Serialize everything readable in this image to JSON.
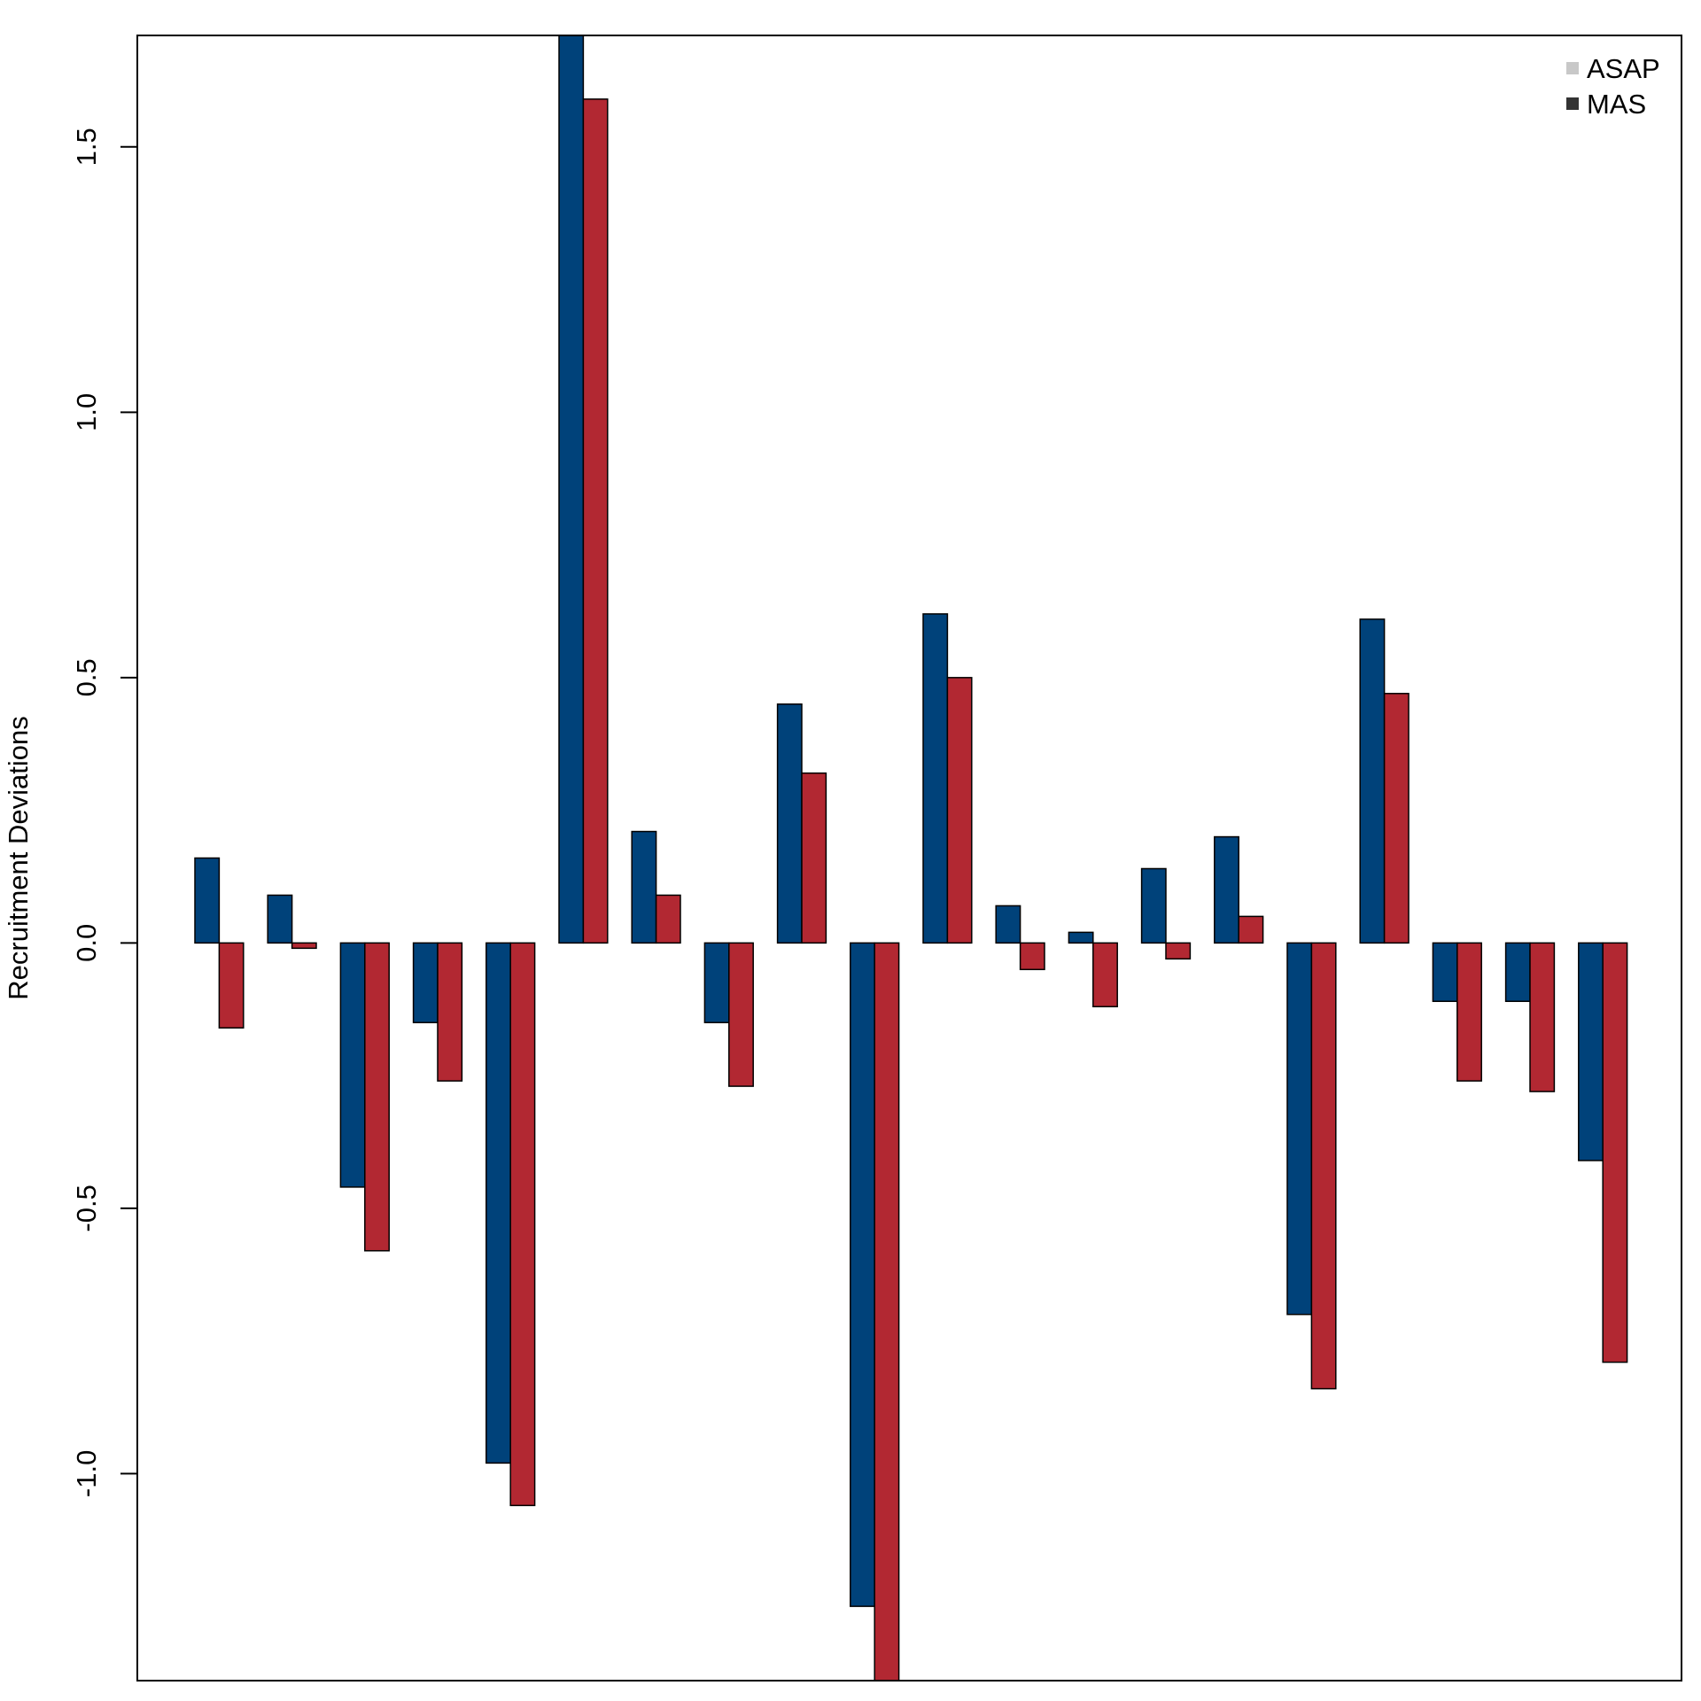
{
  "chart_data": {
    "type": "bar",
    "title": "",
    "xlabel": "",
    "ylabel": "Recruitment Deviations",
    "ylim": [
      -1.39,
      1.71
    ],
    "yticks": [
      -1.0,
      -0.5,
      0.0,
      0.5,
      1.0,
      1.5
    ],
    "ytick_labels": [
      "-1.0",
      "-0.5",
      "0.0",
      "0.5",
      "1.0",
      "1.5"
    ],
    "grid": false,
    "legend_position": "top-right",
    "legend": [
      {
        "label": "ASAP",
        "swatch_color": "#c8c8c8"
      },
      {
        "label": "MAS",
        "swatch_color": "#333333"
      }
    ],
    "series": [
      {
        "color": "#00427a",
        "values": [
          0.16,
          0.09,
          -0.46,
          -0.15,
          -0.98,
          1.71,
          0.21,
          -0.15,
          0.45,
          -1.25,
          0.62,
          0.07,
          0.02,
          0.14,
          0.2,
          -0.7,
          0.61,
          -0.11,
          -0.11,
          -0.41
        ]
      },
      {
        "color": "#b22832",
        "values": [
          -0.16,
          -0.01,
          -0.58,
          -0.26,
          -1.06,
          1.59,
          0.09,
          -0.27,
          0.32,
          -1.39,
          0.5,
          -0.05,
          -0.12,
          -0.03,
          0.05,
          -0.84,
          0.47,
          -0.26,
          -0.28,
          -0.79
        ]
      }
    ]
  }
}
